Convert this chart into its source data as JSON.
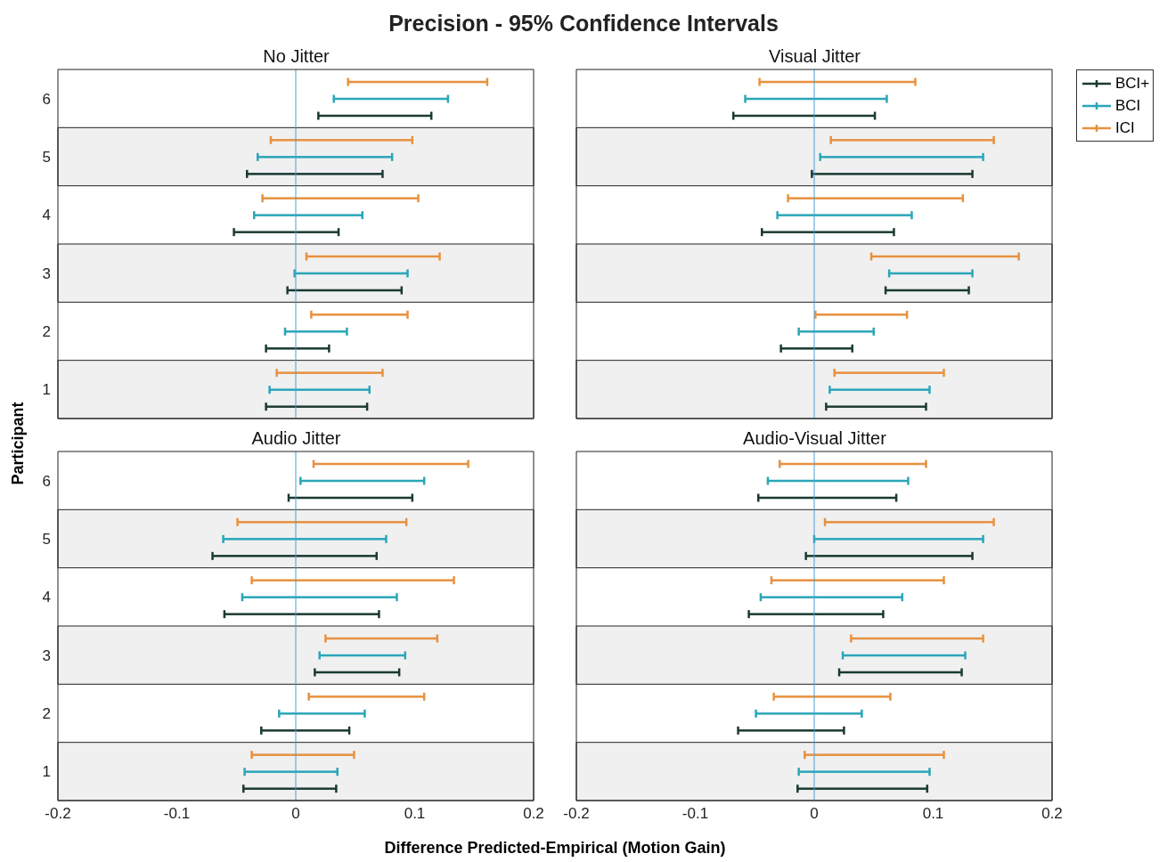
{
  "chart_data": [
    {
      "type": "bar",
      "orientation": "horizontal",
      "title": "No Jitter",
      "ylabel": "Participant",
      "annotations": [
        "Precision - 95% Confidence Intervals"
      ],
      "categories": [
        "6",
        "5",
        "4",
        "3",
        "2",
        "1"
      ],
      "xlim": [
        -0.2,
        0.2
      ],
      "xticks": [
        -0.2,
        -0.1,
        0,
        0.1,
        0.2
      ],
      "tick_labels": "y",
      "series": [
        {
          "color": "#1a3a32",
          "base": [
            0.019,
            -0.041,
            -0.052,
            -0.007,
            -0.025,
            -0.025
          ],
          "values": [
            0.095,
            0.114,
            0.088,
            0.096,
            0.053,
            0.085
          ]
        },
        {
          "color": "#2aa6b8",
          "base": [
            0.032,
            -0.032,
            -0.035,
            -0.001,
            -0.009,
            -0.022
          ],
          "values": [
            0.096,
            0.113,
            0.091,
            0.095,
            0.052,
            0.084
          ]
        },
        {
          "color": "#e8913f",
          "base": [
            0.044,
            -0.021,
            -0.028,
            0.009,
            0.013,
            -0.016
          ],
          "values": [
            0.117,
            0.119,
            0.131,
            0.112,
            0.081,
            0.089
          ]
        }
      ],
      "ref_lines": [
        {
          "axis": "x",
          "value": 0,
          "color": "#4a9fd4"
        }
      ],
      "bands": [
        {
          "axis": "y",
          "from": "5",
          "to": "5",
          "color": "#f0f0f0"
        },
        {
          "axis": "y",
          "from": "3",
          "to": "3",
          "color": "#f0f0f0"
        },
        {
          "axis": "y",
          "from": "1",
          "to": "1",
          "color": "#f0f0f0"
        }
      ]
    },
    {
      "type": "bar",
      "orientation": "horizontal",
      "title": "Visual Jitter",
      "categories": [
        "6",
        "5",
        "4",
        "3",
        "2",
        "1"
      ],
      "xlim": [
        -0.2,
        0.2
      ],
      "xticks": [
        -0.2,
        -0.1,
        0,
        0.1,
        0.2
      ],
      "tick_labels": false,
      "legend": "top right",
      "series": [
        {
          "name": "BCI+",
          "color": "#1a3a32",
          "base": [
            -0.068,
            -0.002,
            -0.044,
            0.06,
            -0.028,
            0.01
          ],
          "values": [
            0.119,
            0.135,
            0.111,
            0.07,
            0.06,
            0.084
          ]
        },
        {
          "name": "BCI",
          "color": "#2aa6b8",
          "base": [
            -0.058,
            0.005,
            -0.031,
            0.063,
            -0.013,
            0.013
          ],
          "values": [
            0.119,
            0.137,
            0.113,
            0.07,
            0.063,
            0.084
          ]
        },
        {
          "name": "ICI",
          "color": "#e8913f",
          "base": [
            -0.046,
            0.014,
            -0.022,
            0.048,
            0.001,
            0.017
          ],
          "values": [
            0.131,
            0.137,
            0.147,
            0.124,
            0.077,
            0.092
          ]
        }
      ],
      "ref_lines": [
        {
          "axis": "x",
          "value": 0,
          "color": "#4a9fd4"
        }
      ],
      "bands": [
        {
          "axis": "y",
          "from": "5",
          "to": "5",
          "color": "#f0f0f0"
        },
        {
          "axis": "y",
          "from": "3",
          "to": "3",
          "color": "#f0f0f0"
        },
        {
          "axis": "y",
          "from": "1",
          "to": "1",
          "color": "#f0f0f0"
        }
      ]
    },
    {
      "type": "bar",
      "orientation": "horizontal",
      "title": "Audio Jitter",
      "xlabel": "Difference Predicted-Empirical (Motion Gain)",
      "categories": [
        "6",
        "5",
        "4",
        "3",
        "2",
        "1"
      ],
      "xlim": [
        -0.2,
        0.2
      ],
      "xticks": [
        -0.2,
        -0.1,
        0,
        0.1,
        0.2
      ],
      "series": [
        {
          "color": "#1a3a32",
          "base": [
            -0.006,
            -0.07,
            -0.06,
            0.016,
            -0.029,
            -0.044
          ],
          "values": [
            0.104,
            0.138,
            0.13,
            0.071,
            0.074,
            0.078
          ]
        },
        {
          "color": "#2aa6b8",
          "base": [
            0.004,
            -0.061,
            -0.045,
            0.02,
            -0.014,
            -0.043
          ],
          "values": [
            0.104,
            0.137,
            0.13,
            0.072,
            0.072,
            0.078
          ]
        },
        {
          "color": "#e8913f",
          "base": [
            0.015,
            -0.049,
            -0.037,
            0.025,
            0.011,
            -0.037
          ],
          "values": [
            0.13,
            0.142,
            0.17,
            0.094,
            0.097,
            0.086
          ]
        }
      ],
      "ref_lines": [
        {
          "axis": "x",
          "value": 0,
          "color": "#4a9fd4"
        }
      ],
      "bands": [
        {
          "axis": "y",
          "from": "5",
          "to": "5",
          "color": "#f0f0f0"
        },
        {
          "axis": "y",
          "from": "3",
          "to": "3",
          "color": "#f0f0f0"
        },
        {
          "axis": "y",
          "from": "1",
          "to": "1",
          "color": "#f0f0f0"
        }
      ]
    },
    {
      "type": "bar",
      "orientation": "horizontal",
      "title": "Audio-Visual Jitter",
      "categories": [
        "6",
        "5",
        "4",
        "3",
        "2",
        "1"
      ],
      "xlim": [
        -0.2,
        0.2
      ],
      "xticks": [
        -0.2,
        -0.1,
        0,
        0.1,
        0.2
      ],
      "tick_labels": "x",
      "series": [
        {
          "color": "#1a3a32",
          "base": [
            -0.047,
            -0.007,
            -0.055,
            0.021,
            -0.064,
            -0.014
          ],
          "values": [
            0.116,
            0.14,
            0.113,
            0.103,
            0.089,
            0.109
          ]
        },
        {
          "color": "#2aa6b8",
          "base": [
            -0.039,
            0.0,
            -0.045,
            0.024,
            -0.049,
            -0.013
          ],
          "values": [
            0.118,
            0.142,
            0.119,
            0.103,
            0.089,
            0.11
          ]
        },
        {
          "color": "#e8913f",
          "base": [
            -0.029,
            0.009,
            -0.036,
            0.031,
            -0.034,
            -0.008
          ],
          "values": [
            0.123,
            0.142,
            0.145,
            0.111,
            0.098,
            0.117
          ]
        }
      ],
      "ref_lines": [
        {
          "axis": "x",
          "value": 0,
          "color": "#4a9fd4"
        }
      ],
      "bands": [
        {
          "axis": "y",
          "from": "5",
          "to": "5",
          "color": "#f0f0f0"
        },
        {
          "axis": "y",
          "from": "3",
          "to": "3",
          "color": "#f0f0f0"
        },
        {
          "axis": "y",
          "from": "1",
          "to": "1",
          "color": "#f0f0f0"
        }
      ]
    }
  ]
}
